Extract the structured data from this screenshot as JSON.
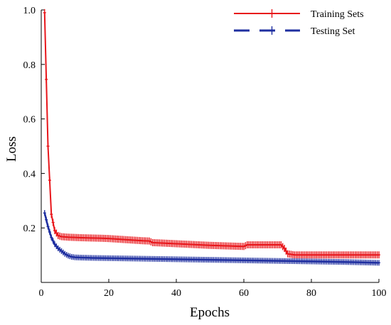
{
  "chart_data": {
    "type": "line",
    "xlabel": "Epochs",
    "ylabel": "Loss",
    "xlim": [
      0,
      100
    ],
    "ylim": [
      0,
      1.0
    ],
    "x_ticks": [
      "0",
      "20",
      "40",
      "60",
      "80",
      "100"
    ],
    "y_ticks": [
      "0.2",
      "0.4",
      "0.6",
      "0.8",
      "1.0"
    ],
    "grid": false,
    "legend_position": "top-right",
    "series": [
      {
        "name": "Training Sets",
        "color": "#e8161b",
        "line_style": "solid",
        "marker": "plus",
        "x": [
          1,
          2,
          3,
          4,
          5,
          6,
          7,
          8,
          10,
          12,
          15,
          18,
          20,
          25,
          30,
          32,
          33,
          35,
          40,
          45,
          50,
          55,
          60,
          61,
          62,
          65,
          70,
          71,
          72,
          73,
          75,
          80,
          85,
          90,
          95,
          100
        ],
        "y": [
          0.99,
          0.5,
          0.25,
          0.19,
          0.172,
          0.168,
          0.167,
          0.166,
          0.165,
          0.164,
          0.163,
          0.162,
          0.161,
          0.157,
          0.153,
          0.152,
          0.146,
          0.145,
          0.142,
          0.139,
          0.136,
          0.134,
          0.132,
          0.138,
          0.138,
          0.138,
          0.138,
          0.138,
          0.125,
          0.105,
          0.101,
          0.101,
          0.101,
          0.101,
          0.101,
          0.101
        ]
      },
      {
        "name": "Testing Set",
        "color": "#1f2fa0",
        "line_style": "dashed",
        "marker": "plus",
        "x": [
          1,
          2,
          3,
          4,
          5,
          6,
          7,
          8,
          9,
          10,
          12,
          15,
          20,
          30,
          40,
          50,
          60,
          70,
          80,
          90,
          100
        ],
        "y": [
          0.255,
          0.205,
          0.165,
          0.14,
          0.125,
          0.115,
          0.105,
          0.098,
          0.094,
          0.092,
          0.091,
          0.09,
          0.089,
          0.087,
          0.085,
          0.083,
          0.081,
          0.079,
          0.077,
          0.075,
          0.072
        ]
      }
    ]
  }
}
